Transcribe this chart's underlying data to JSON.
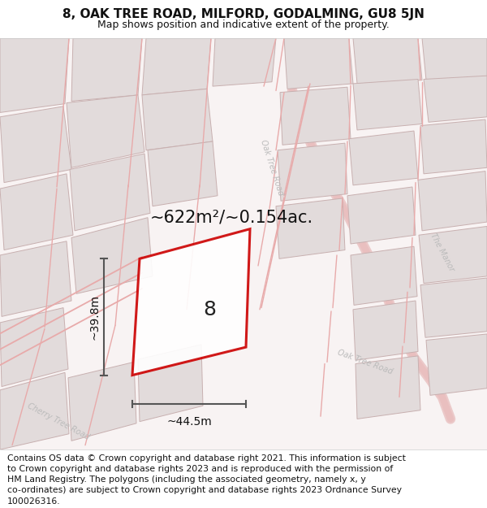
{
  "title": "8, OAK TREE ROAD, MILFORD, GODALMING, GU8 5JN",
  "subtitle": "Map shows position and indicative extent of the property.",
  "footer": "Contains OS data © Crown copyright and database right 2021. This information is subject\nto Crown copyright and database rights 2023 and is reproduced with the permission of\nHM Land Registry. The polygons (including the associated geometry, namely x, y\nco-ordinates) are subject to Crown copyright and database rights 2023 Ordnance Survey\n100026316.",
  "area_label": "~622m²/~0.154ac.",
  "width_label": "~44.5m",
  "height_label": "~39.8m",
  "property_number": "8",
  "map_bg": "#f8f4f4",
  "building_fill": "#e2dbdb",
  "building_edge": "#c8b0b0",
  "road_line_color": "#e8aaaa",
  "property_line": "#cc0000",
  "property_fill": "#ffffff",
  "dim_line_color": "#555555",
  "road_label_color": "#bbbbbb",
  "title_fontsize": 11,
  "subtitle_fontsize": 9,
  "footer_fontsize": 7.8,
  "area_fontsize": 15,
  "dim_fontsize": 10,
  "number_fontsize": 18,
  "road_label_fontsize": 7
}
